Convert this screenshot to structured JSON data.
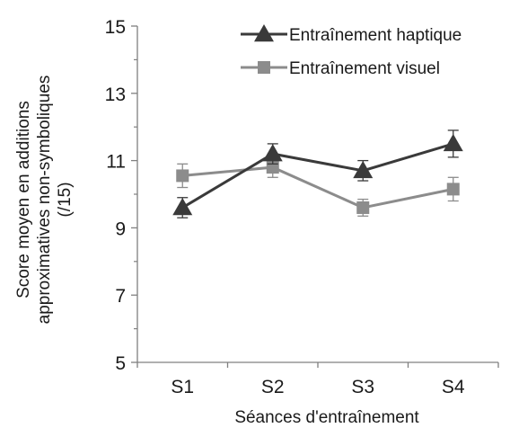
{
  "chart_data": {
    "type": "line",
    "title": "",
    "xlabel": "Séances d'entraînement",
    "ylabel_lines": [
      "Score moyen en additions",
      "approximatives non-symboliques",
      "(/15)"
    ],
    "ylim": [
      5,
      15
    ],
    "yticks": [
      5,
      7,
      9,
      11,
      13,
      15
    ],
    "categories": [
      "S1",
      "S2",
      "S3",
      "S4"
    ],
    "grid": false,
    "legend_position": "top-right",
    "series": [
      {
        "name": "Entraînement haptique",
        "marker": "triangle",
        "color": "#3a3a3a",
        "values": [
          9.6,
          11.2,
          10.7,
          11.5
        ],
        "errors": [
          0.3,
          0.3,
          0.3,
          0.4
        ]
      },
      {
        "name": "Entraînement visuel",
        "marker": "square",
        "color": "#8c8c8c",
        "values": [
          10.55,
          10.8,
          9.6,
          10.15
        ],
        "errors": [
          0.35,
          0.3,
          0.25,
          0.35
        ]
      }
    ]
  }
}
